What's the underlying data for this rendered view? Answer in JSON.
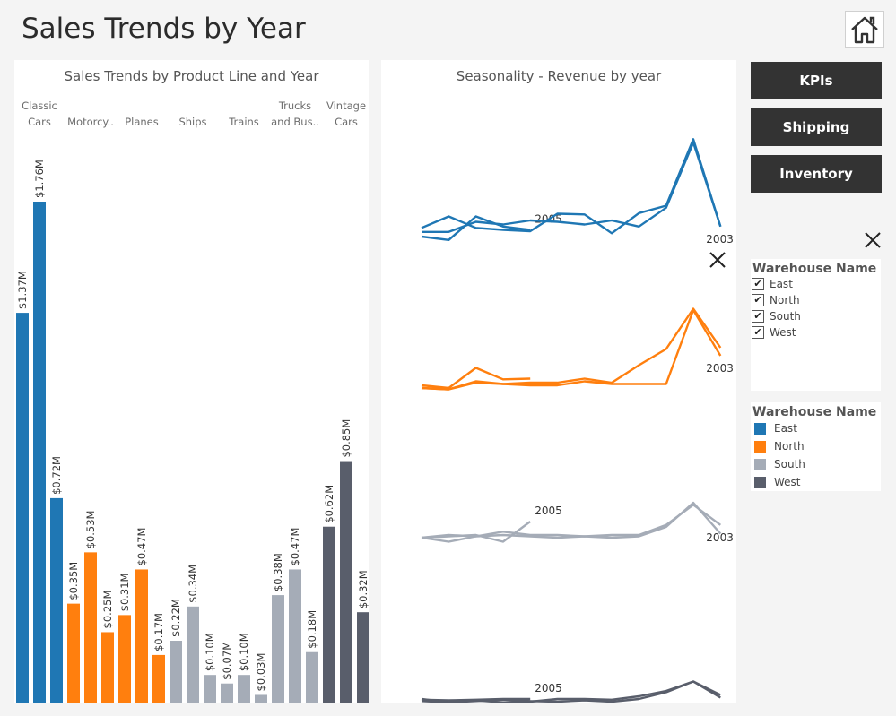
{
  "header": {
    "title": "Sales Trends by Year",
    "home_icon": "home-icon"
  },
  "nav": {
    "kpis": "KPIs",
    "shipping": "Shipping",
    "inventory": "Inventory"
  },
  "colors": {
    "East": "#1f77b4",
    "North": "#ff7f0e",
    "South": "#a5acb7",
    "West": "#595e6b"
  },
  "filter": {
    "title": "Warehouse Name",
    "items": [
      {
        "label": "East",
        "checked": true
      },
      {
        "label": "North",
        "checked": true
      },
      {
        "label": "South",
        "checked": true
      },
      {
        "label": "West",
        "checked": true
      }
    ]
  },
  "legend": {
    "title": "Warehouse Name",
    "items": [
      {
        "label": "East",
        "color": "#1f77b4"
      },
      {
        "label": "North",
        "color": "#ff7f0e"
      },
      {
        "label": "South",
        "color": "#a5acb7"
      },
      {
        "label": "West",
        "color": "#595e6b"
      }
    ]
  },
  "chart_data": [
    {
      "type": "bar",
      "title": "Sales Trends by Product Line and Year",
      "unit": "$M",
      "label_format": "$%.2fM",
      "categories": [
        {
          "label_lines": [
            "Classic",
            "Cars"
          ],
          "warehouse": "East",
          "values": [
            1.37,
            1.76,
            0.72
          ]
        },
        {
          "label_lines": [
            "Motorcy.."
          ],
          "warehouse": "North",
          "values": [
            0.35,
            0.53,
            0.25
          ]
        },
        {
          "label_lines": [
            "Planes"
          ],
          "warehouse": "North",
          "values": [
            0.31,
            0.47,
            0.17
          ]
        },
        {
          "label_lines": [
            "Ships"
          ],
          "warehouse": "South",
          "values": [
            0.22,
            0.34,
            0.1
          ]
        },
        {
          "label_lines": [
            "Trains"
          ],
          "warehouse": "South",
          "values": [
            0.07,
            0.1,
            0.03
          ]
        },
        {
          "label_lines": [
            "Trucks",
            "and Bus.."
          ],
          "warehouse": "South",
          "values": [
            0.38,
            0.47,
            0.18
          ]
        },
        {
          "label_lines": [
            "Vintage",
            "Cars"
          ],
          "warehouse": "West",
          "values": [
            0.62,
            0.85,
            0.32
          ]
        }
      ],
      "ylim": [
        0,
        1.76
      ]
    },
    {
      "type": "line",
      "title": "Seasonality - Revenue by year",
      "x": [
        1,
        2,
        3,
        4,
        5,
        6,
        7,
        8,
        9,
        10,
        11,
        12
      ],
      "panels": [
        {
          "warehouse": "East",
          "series": [
            {
              "name": "2005",
              "values": [
                0.4,
                0.35,
                0.7,
                0.55,
                0.5
              ]
            },
            {
              "name": "2003",
              "values": [
                0.47,
                0.47,
                0.62,
                0.58,
                0.64,
                0.62,
                0.58,
                0.64,
                0.55,
                0.83,
                1.8,
                0.55
              ]
            },
            {
              "name": "",
              "values": [
                0.53,
                0.7,
                0.53,
                0.5,
                0.48,
                0.74,
                0.73,
                0.45,
                0.75,
                0.86,
                1.85,
                0.55
              ]
            }
          ]
        },
        {
          "warehouse": "North",
          "series": [
            {
              "name": "",
              "values": [
                0.36,
                0.32,
                0.62,
                0.45,
                0.46
              ]
            },
            {
              "name": "2003",
              "values": [
                0.32,
                0.3,
                0.4,
                0.38,
                0.36,
                0.36,
                0.42,
                0.38,
                0.38,
                0.38,
                1.48,
                0.8
              ]
            },
            {
              "name": "",
              "values": [
                0.32,
                0.3,
                0.42,
                0.38,
                0.4,
                0.4,
                0.46,
                0.4,
                0.66,
                0.9,
                1.5,
                0.92
              ]
            }
          ]
        },
        {
          "warehouse": "South",
          "series": [
            {
              "name": "2005",
              "values": [
                0.36,
                0.38,
                0.4,
                0.3,
                0.6
              ]
            },
            {
              "name": "2003",
              "values": [
                0.36,
                0.4,
                0.38,
                0.45,
                0.4,
                0.4,
                0.38,
                0.4,
                0.4,
                0.55,
                0.85,
                0.55
              ]
            },
            {
              "name": "",
              "values": [
                0.36,
                0.3,
                0.38,
                0.4,
                0.38,
                0.36,
                0.38,
                0.36,
                0.38,
                0.52,
                0.88,
                0.42
              ]
            }
          ]
        },
        {
          "warehouse": "West",
          "series": [
            {
              "name": "2005",
              "values": [
                0.35,
                0.34,
                0.35,
                0.36,
                0.36
              ]
            },
            {
              "name": "2003",
              "values": [
                0.36,
                0.31,
                0.34,
                0.31,
                0.32,
                0.36,
                0.36,
                0.35,
                0.4,
                0.48,
                0.62,
                0.38
              ]
            },
            {
              "name": "",
              "values": [
                0.33,
                0.31,
                0.33,
                0.35,
                0.33,
                0.32,
                0.34,
                0.32,
                0.36,
                0.46,
                0.62,
                0.42
              ]
            }
          ]
        }
      ]
    }
  ]
}
